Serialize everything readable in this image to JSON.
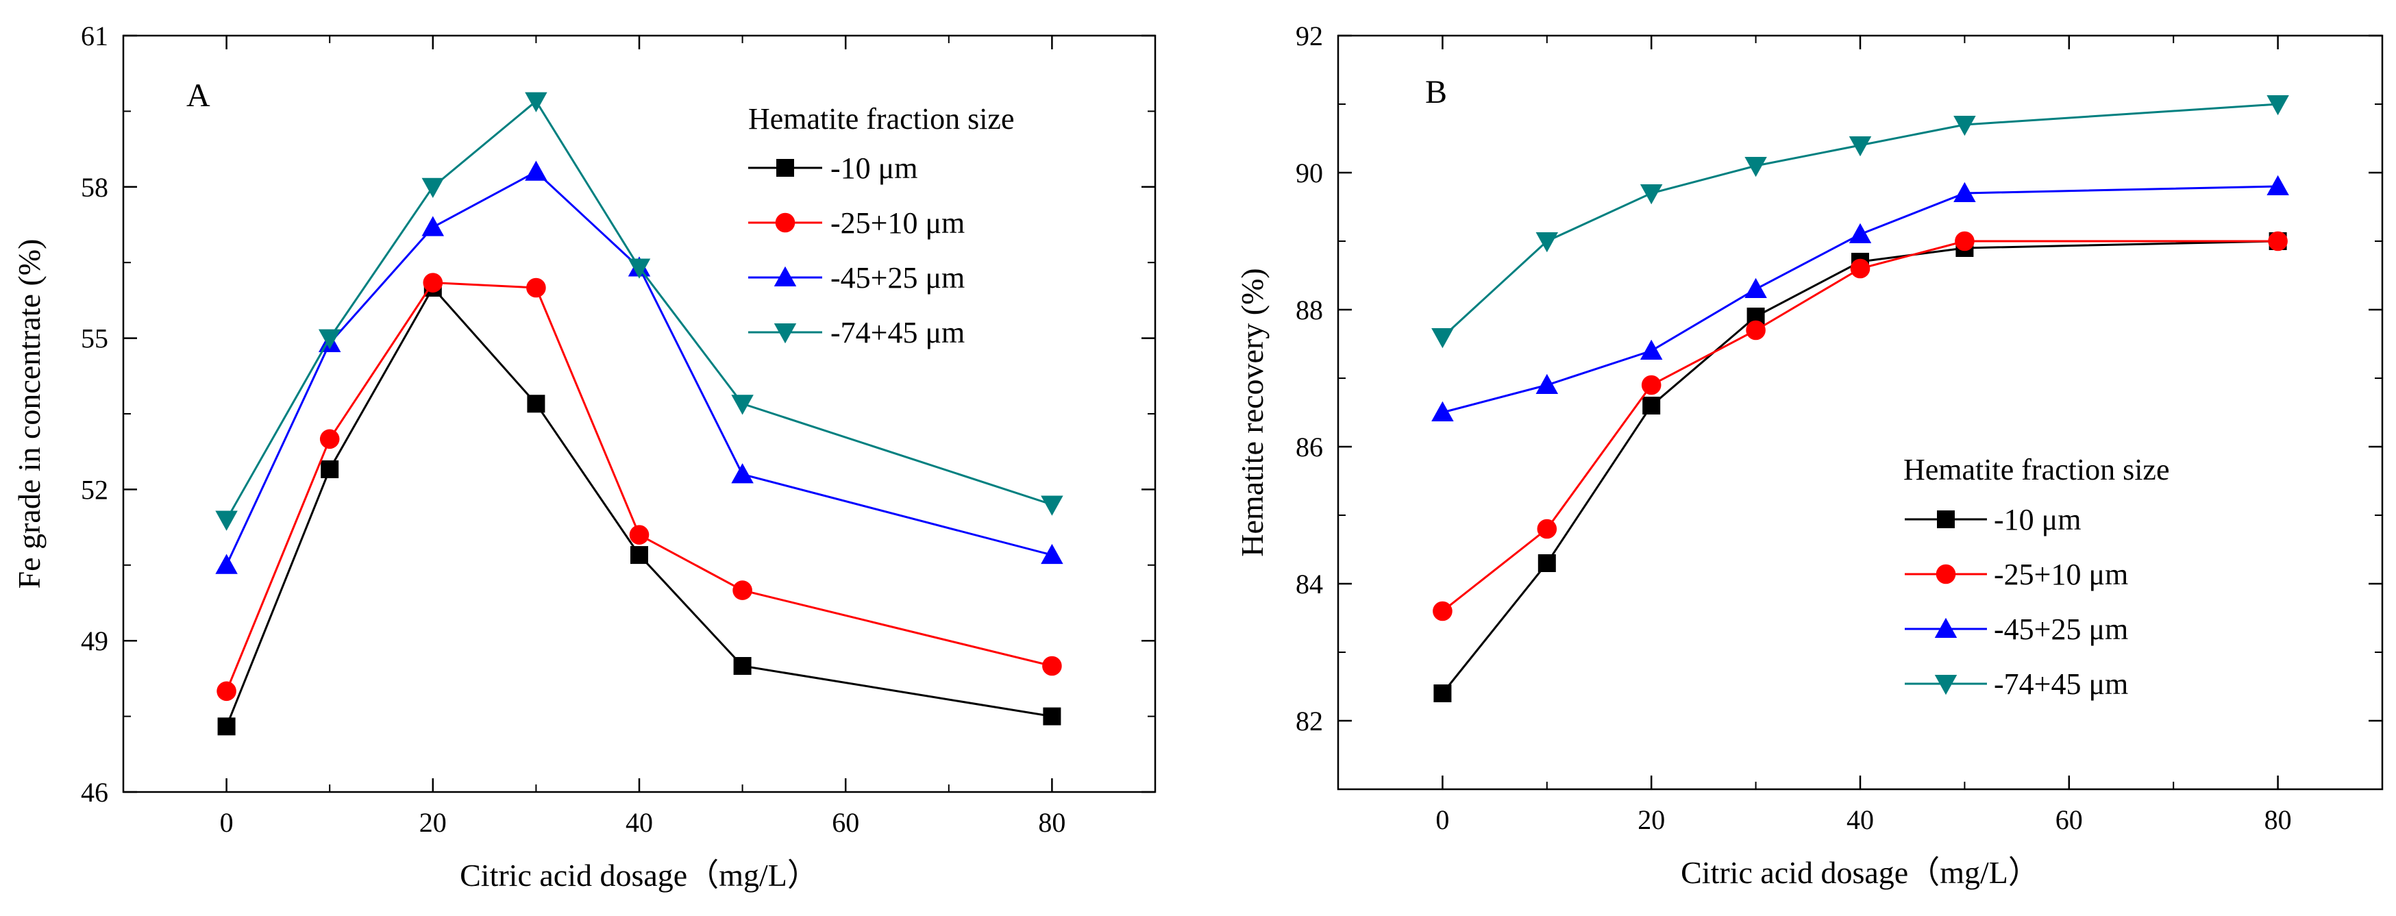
{
  "chart_data": [
    {
      "type": "line",
      "panel_label": "A",
      "xlabel": "Citric acid dosage（mg/L）",
      "ylabel": "Fe grade in concentrate (%)",
      "xlim": [
        -10,
        90
      ],
      "ylim": [
        46,
        61
      ],
      "x_major_ticks": [
        0,
        20,
        40,
        60,
        80
      ],
      "x_minor_ticks": [
        -10,
        10,
        30,
        50,
        70,
        90
      ],
      "y_major_ticks": [
        46,
        49,
        52,
        55,
        58,
        61
      ],
      "y_minor_ticks": [
        47.5,
        50.5,
        53.5,
        56.5,
        59.5
      ],
      "grid": false,
      "legend_title": "Hematite fraction size",
      "legend_position": "top-right",
      "series": [
        {
          "name": "-10 μm",
          "color": "#000000",
          "marker": "square",
          "x": [
            0,
            10,
            20,
            30,
            40,
            50,
            80
          ],
          "values": [
            47.3,
            52.4,
            56.0,
            53.7,
            50.7,
            48.5,
            47.5
          ]
        },
        {
          "name": "-25+10 μm",
          "color": "#ff0000",
          "marker": "circle",
          "x": [
            0,
            10,
            20,
            30,
            40,
            50,
            80
          ],
          "values": [
            48.0,
            53.0,
            56.1,
            56.0,
            51.1,
            50.0,
            48.5
          ]
        },
        {
          "name": "-45+25 μm",
          "color": "#0000ff",
          "marker": "triangle-up",
          "x": [
            0,
            10,
            20,
            30,
            40,
            50,
            80
          ],
          "values": [
            50.5,
            54.9,
            57.2,
            58.3,
            56.4,
            52.3,
            50.7
          ]
        },
        {
          "name": "-74+45 μm",
          "color": "#008080",
          "marker": "triangle-down",
          "x": [
            0,
            10,
            20,
            30,
            40,
            50,
            80
          ],
          "values": [
            51.4,
            55.0,
            58.0,
            59.7,
            56.4,
            53.7,
            51.7
          ]
        }
      ]
    },
    {
      "type": "line",
      "panel_label": "B",
      "xlabel": "Citric acid dosage（mg/L）",
      "ylabel": "Hematite recovery (%)",
      "xlim": [
        -10,
        90
      ],
      "ylim": [
        81,
        92
      ],
      "x_major_ticks": [
        0,
        20,
        40,
        60,
        80
      ],
      "x_minor_ticks": [
        -10,
        10,
        30,
        50,
        70,
        90
      ],
      "y_major_ticks": [
        82,
        84,
        86,
        88,
        90,
        92
      ],
      "y_minor_ticks": [
        81,
        83,
        85,
        87,
        89,
        91
      ],
      "grid": false,
      "legend_title": "Hematite fraction size",
      "legend_position": "bottom-right",
      "series": [
        {
          "name": "-10 μm",
          "color": "#000000",
          "marker": "square",
          "x": [
            0,
            10,
            20,
            30,
            40,
            50,
            80
          ],
          "values": [
            82.4,
            84.3,
            86.6,
            87.9,
            88.7,
            88.9,
            89.0
          ]
        },
        {
          "name": "-25+10 μm",
          "color": "#ff0000",
          "marker": "circle",
          "x": [
            0,
            10,
            20,
            30,
            40,
            50,
            80
          ],
          "values": [
            83.6,
            84.8,
            86.9,
            87.7,
            88.6,
            89.0,
            89.0
          ]
        },
        {
          "name": "-45+25 μm",
          "color": "#0000ff",
          "marker": "triangle-up",
          "x": [
            0,
            10,
            20,
            30,
            40,
            50,
            80
          ],
          "values": [
            86.5,
            86.9,
            87.4,
            88.3,
            89.1,
            89.7,
            89.8
          ]
        },
        {
          "name": "-74+45 μm",
          "color": "#008080",
          "marker": "triangle-down",
          "x": [
            0,
            10,
            20,
            30,
            40,
            50,
            80
          ],
          "values": [
            87.6,
            89.0,
            89.7,
            90.1,
            90.4,
            90.7,
            91.0
          ]
        }
      ]
    }
  ]
}
